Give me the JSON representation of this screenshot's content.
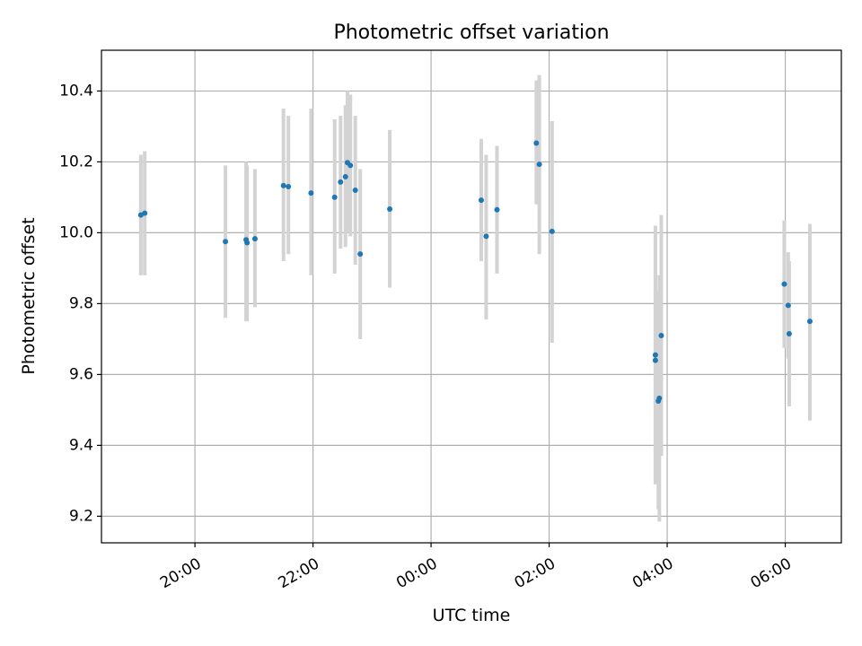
{
  "chart_data": {
    "type": "scatter",
    "title": "Photometric offset variation",
    "xlabel": "UTC time",
    "ylabel": "Photometric offset",
    "x_is_time": true,
    "xlim": [
      "18:25",
      "30:57"
    ],
    "ylim": [
      9.125,
      10.515
    ],
    "x_ticks": [
      {
        "value": "20:00",
        "label": "20:00"
      },
      {
        "value": "22:00",
        "label": "22:00"
      },
      {
        "value": "24:00",
        "label": "00:00"
      },
      {
        "value": "26:00",
        "label": "02:00"
      },
      {
        "value": "28:00",
        "label": "04:00"
      },
      {
        "value": "30:00",
        "label": "06:00"
      }
    ],
    "y_ticks": [
      9.2,
      9.4,
      9.6,
      9.8,
      10.0,
      10.2,
      10.4
    ],
    "grid": true,
    "marker_color": "#1f77b4",
    "errorbar_color": "#d3d3d3",
    "points": [
      {
        "t": "19:05",
        "y": 10.05,
        "lo": 9.88,
        "hi": 10.22
      },
      {
        "t": "19:09",
        "y": 10.055,
        "lo": 9.88,
        "hi": 10.23
      },
      {
        "t": "20:31",
        "y": 9.975,
        "lo": 9.76,
        "hi": 10.19
      },
      {
        "t": "20:52",
        "y": 9.98,
        "lo": 9.75,
        "hi": 10.2
      },
      {
        "t": "20:53",
        "y": 9.972,
        "lo": 9.75,
        "hi": 10.19
      },
      {
        "t": "21:01",
        "y": 9.983,
        "lo": 9.79,
        "hi": 10.18
      },
      {
        "t": "21:30",
        "y": 10.133,
        "lo": 9.92,
        "hi": 10.35
      },
      {
        "t": "21:35",
        "y": 10.13,
        "lo": 9.94,
        "hi": 10.33
      },
      {
        "t": "21:58",
        "y": 10.112,
        "lo": 9.88,
        "hi": 10.35
      },
      {
        "t": "22:22",
        "y": 10.1,
        "lo": 9.885,
        "hi": 10.32
      },
      {
        "t": "22:28",
        "y": 10.143,
        "lo": 9.955,
        "hi": 10.33
      },
      {
        "t": "22:33",
        "y": 10.158,
        "lo": 9.96,
        "hi": 10.36
      },
      {
        "t": "22:35",
        "y": 10.198,
        "lo": 10.0,
        "hi": 10.4
      },
      {
        "t": "22:38",
        "y": 10.19,
        "lo": 9.99,
        "hi": 10.39
      },
      {
        "t": "22:43",
        "y": 10.12,
        "lo": 9.91,
        "hi": 10.33
      },
      {
        "t": "22:48",
        "y": 9.94,
        "lo": 9.7,
        "hi": 10.18
      },
      {
        "t": "23:18",
        "y": 10.067,
        "lo": 9.845,
        "hi": 10.29
      },
      {
        "t": "24:51",
        "y": 10.092,
        "lo": 9.92,
        "hi": 10.265
      },
      {
        "t": "24:56",
        "y": 9.99,
        "lo": 9.755,
        "hi": 10.22
      },
      {
        "t": "25:07",
        "y": 10.065,
        "lo": 9.885,
        "hi": 10.245
      },
      {
        "t": "25:47",
        "y": 10.253,
        "lo": 10.08,
        "hi": 10.43
      },
      {
        "t": "25:50",
        "y": 10.193,
        "lo": 9.94,
        "hi": 10.445
      },
      {
        "t": "26:03",
        "y": 10.004,
        "lo": 9.69,
        "hi": 10.315
      },
      {
        "t": "27:48",
        "y": 9.655,
        "lo": 9.31,
        "hi": 10.02
      },
      {
        "t": "27:48",
        "y": 9.64,
        "lo": 9.29,
        "hi": 9.975
      },
      {
        "t": "27:51",
        "y": 9.525,
        "lo": 9.22,
        "hi": 9.835
      },
      {
        "t": "27:52",
        "y": 9.533,
        "lo": 9.185,
        "hi": 9.88
      },
      {
        "t": "27:54",
        "y": 9.71,
        "lo": 9.37,
        "hi": 10.05
      },
      {
        "t": "29:59",
        "y": 9.855,
        "lo": 9.675,
        "hi": 10.035
      },
      {
        "t": "30:03",
        "y": 9.795,
        "lo": 9.645,
        "hi": 9.945
      },
      {
        "t": "30:04",
        "y": 9.715,
        "lo": 9.51,
        "hi": 9.92
      },
      {
        "t": "30:25",
        "y": 9.75,
        "lo": 9.47,
        "hi": 10.025
      }
    ]
  }
}
